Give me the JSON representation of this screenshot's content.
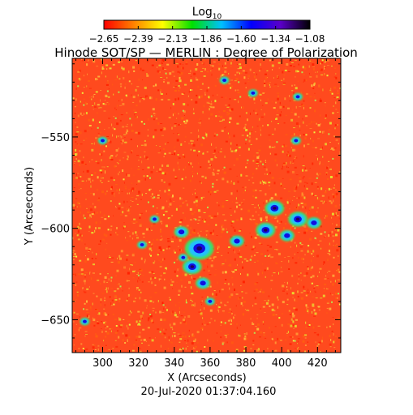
{
  "colorbar": {
    "label_main": "Log",
    "label_sub": "10",
    "ticks": [
      "−2.65",
      "−2.39",
      "−2.13",
      "−1.86",
      "−1.60",
      "−1.34",
      "−1.08"
    ],
    "min": -2.65,
    "max": -1.08,
    "colors": [
      "#ff0000",
      "#ff8000",
      "#ffff00",
      "#00e000",
      "#00c0ff",
      "#0000ff",
      "#5a00c8",
      "#000000"
    ]
  },
  "chart_data": {
    "type": "heatmap",
    "title": "Hinode SOT/SP — MERLIN : Degree of Polarization",
    "xlabel": "X (Arcseconds)",
    "ylabel": "Y (Arcseconds)",
    "xlim": [
      283,
      433
    ],
    "ylim": [
      -668,
      -507
    ],
    "xticks": [
      300,
      320,
      340,
      360,
      380,
      400,
      420
    ],
    "yticks": [
      -550,
      -600,
      -650
    ],
    "value_range": [
      -2.65,
      -1.08
    ],
    "background_color": "#ff4a1e",
    "speckle_colors": [
      "#ff2000",
      "#ff6010",
      "#ff9a30",
      "#ffc040",
      "#e8e030"
    ],
    "strong_regions": [
      {
        "x": 354,
        "y": -611,
        "r": 6
      },
      {
        "x": 350,
        "y": -621,
        "r": 4
      },
      {
        "x": 344,
        "y": -602,
        "r": 3
      },
      {
        "x": 356,
        "y": -630,
        "r": 3
      },
      {
        "x": 375,
        "y": -607,
        "r": 3
      },
      {
        "x": 391,
        "y": -601,
        "r": 4
      },
      {
        "x": 396,
        "y": -589,
        "r": 4
      },
      {
        "x": 409,
        "y": -595,
        "r": 4
      },
      {
        "x": 418,
        "y": -597,
        "r": 3
      },
      {
        "x": 403,
        "y": -604,
        "r": 3
      },
      {
        "x": 329,
        "y": -595,
        "r": 2
      },
      {
        "x": 322,
        "y": -609,
        "r": 2
      },
      {
        "x": 345,
        "y": -616,
        "r": 2
      },
      {
        "x": 368,
        "y": -519,
        "r": 2
      },
      {
        "x": 384,
        "y": -526,
        "r": 2
      },
      {
        "x": 409,
        "y": -528,
        "r": 2
      },
      {
        "x": 408,
        "y": -552,
        "r": 2
      },
      {
        "x": 300,
        "y": -552,
        "r": 2
      },
      {
        "x": 290,
        "y": -651,
        "r": 2
      },
      {
        "x": 360,
        "y": -640,
        "r": 2
      }
    ]
  },
  "footer": {
    "timestamp": "20-Jul-2020 01:37:04.160"
  }
}
